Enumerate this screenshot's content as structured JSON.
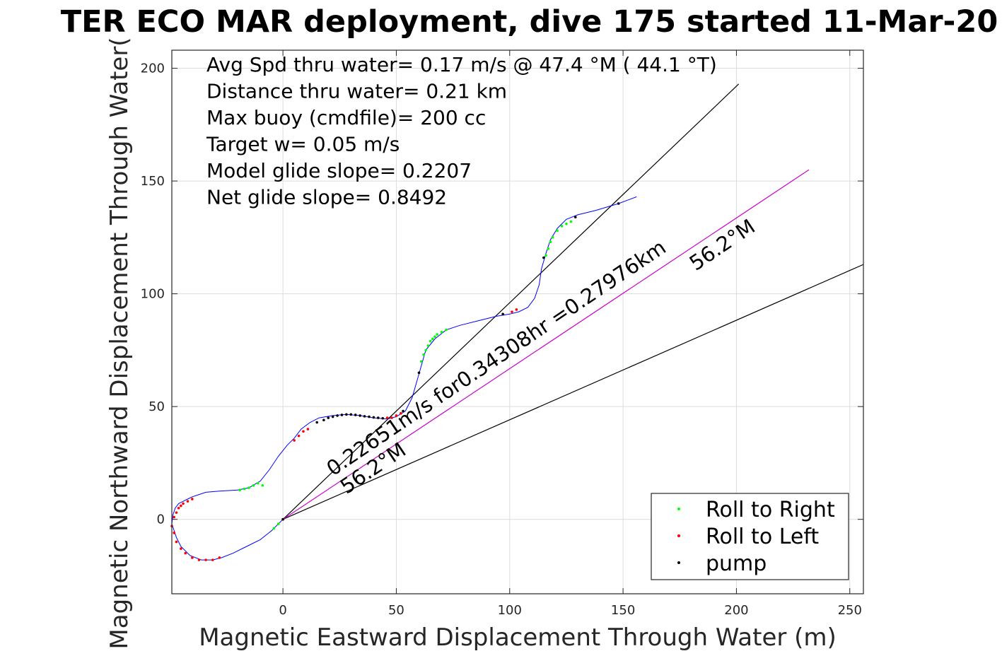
{
  "title": "TER ECO MAR deployment, dive 175 started 11-Mar-20",
  "chart_data": {
    "type": "scatter",
    "xlabel": "Magnetic Eastward Displacement Through Water (m)",
    "ylabel": "Magnetic Northward Displacement Through Water(",
    "xlim": [
      -49,
      256
    ],
    "ylim": [
      -33,
      208
    ],
    "xticks": [
      0,
      50,
      100,
      150,
      200,
      250
    ],
    "yticks": [
      0,
      50,
      100,
      150,
      200
    ],
    "grid": true,
    "info_lines": [
      "Avg Spd thru water=  0.17 m/s @  47.4 °M ( 44.1 °T)",
      "Distance thru water=  0.21 km",
      "Max buoy (cmdfile)= 200 cc",
      "Target w= 0.05 m/s",
      "Model glide slope= 0.2207",
      "Net glide slope= 0.8492"
    ],
    "annotations": [
      {
        "text": "0.22651m/s for0.34308hr =0.27976km",
        "x": 22,
        "y": 19,
        "angle_deg": 34
      },
      {
        "text": "56.2°M",
        "x": 28,
        "y": 11,
        "angle_deg": 34
      },
      {
        "text": "56.2°M",
        "x": 182,
        "y": 110,
        "angle_deg": 34
      }
    ],
    "lines": [
      {
        "name": "",
        "color": "#000000",
        "x": [
          0,
          201
        ],
        "y": [
          0,
          193
        ]
      },
      {
        "name": "",
        "color": "#000000",
        "x": [
          0,
          256
        ],
        "y": [
          0,
          113
        ]
      },
      {
        "name": "",
        "color": "#cc00cc",
        "x": [
          0,
          232
        ],
        "y": [
          0,
          155
        ]
      }
    ],
    "track": {
      "color": "#0000ff",
      "x": [
        0,
        -5,
        -10,
        -16,
        -22,
        -27,
        -31,
        -36,
        -41,
        -45,
        -47,
        -49,
        -48.5,
        -47.5,
        -46,
        -44,
        -42,
        -40,
        -37,
        -34,
        -28,
        -20,
        -15,
        -10,
        -6,
        -2,
        2,
        5,
        8,
        12,
        16,
        22,
        28,
        34,
        40,
        46,
        50,
        54,
        57,
        59,
        61,
        63,
        67,
        72,
        78,
        86,
        94,
        100,
        104,
        108,
        111,
        113,
        114,
        116,
        118,
        121,
        125,
        130,
        138,
        148,
        156
      ],
      "y": [
        0,
        -5,
        -9,
        -12,
        -15,
        -17,
        -18,
        -18,
        -16,
        -12,
        -8,
        -2,
        2,
        5,
        7,
        8,
        9,
        10,
        11,
        12,
        12.5,
        13,
        14,
        17,
        22,
        28,
        33,
        36,
        40,
        43,
        45,
        46,
        46.5,
        46,
        45,
        44.5,
        45.5,
        48,
        54,
        61,
        68,
        75,
        80,
        84,
        86,
        88,
        90,
        91,
        92,
        94,
        98,
        104,
        111,
        118,
        124,
        129,
        133,
        135,
        137,
        140,
        143
      ]
    },
    "points": [
      {
        "series": "Roll to Right",
        "x": [
          -2,
          -4,
          -9,
          -11,
          -13,
          -15,
          -17,
          -19,
          61,
          62,
          63,
          64,
          65,
          66,
          67,
          68,
          70,
          72,
          116,
          117,
          118,
          119,
          121,
          123,
          125,
          127
        ],
        "y": [
          -2,
          -4,
          15,
          16,
          15,
          14,
          13.5,
          13,
          70,
          73,
          75,
          77,
          79,
          80,
          81,
          82,
          83,
          84,
          117,
          120,
          123,
          125,
          128,
          130,
          131,
          132
        ]
      },
      {
        "series": "Roll to Left",
        "x": [
          0,
          5,
          7,
          9,
          11,
          -28,
          -31,
          -34,
          -37,
          -40,
          -43,
          -45,
          -47,
          -48,
          -49,
          -48,
          -47,
          -46,
          -45,
          -44,
          -42,
          -40,
          46,
          48,
          50,
          52,
          101,
          103
        ],
        "y": [
          0,
          35,
          37,
          39,
          40,
          -17,
          -18,
          -18,
          -18,
          -17,
          -15,
          -13,
          -10,
          -6,
          -3,
          1,
          3,
          5,
          6,
          7,
          8,
          9,
          45,
          45,
          46,
          47,
          92,
          93
        ]
      },
      {
        "series": "pump",
        "x": [
          0,
          15,
          18,
          20,
          22,
          24,
          26,
          28,
          30,
          32,
          34,
          36,
          38,
          40,
          42,
          44,
          53,
          60,
          97,
          115,
          129,
          148
        ],
        "y": [
          0,
          43,
          44,
          45,
          45.5,
          46,
          46.3,
          46.5,
          46.5,
          46.3,
          46,
          45.7,
          45.5,
          45.2,
          45,
          44.8,
          48,
          65,
          91,
          116,
          134,
          140
        ]
      }
    ],
    "legend": {
      "placement": "bottom-right",
      "entries": [
        {
          "label": "Roll to Right",
          "color": "#00ff00"
        },
        {
          "label": "Roll to Left",
          "color": "#ff0000"
        },
        {
          "label": "pump",
          "color": "#000000"
        }
      ]
    }
  }
}
